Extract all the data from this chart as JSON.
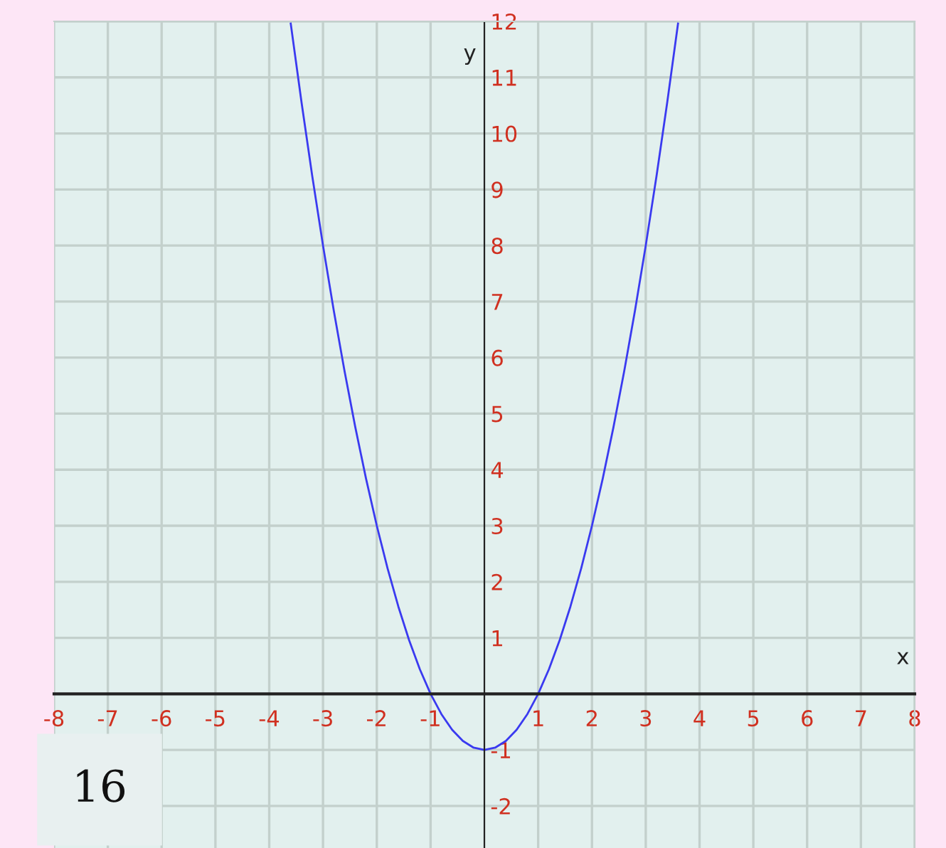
{
  "chart_data": {
    "type": "line",
    "xlabel": "x",
    "ylabel": "y",
    "series": [
      {
        "color": "#3a3af0",
        "x": [
          -3.6,
          -3.4,
          -3.2,
          -3.0,
          -2.8,
          -2.6,
          -2.4,
          -2.2,
          -2.0,
          -1.8,
          -1.6,
          -1.4,
          -1.2,
          -1.0,
          -0.8,
          -0.6,
          -0.4,
          -0.2,
          0,
          0.2,
          0.4,
          0.6,
          0.8,
          1.0,
          1.2,
          1.4,
          1.6,
          1.8,
          2.0,
          2.2,
          2.4,
          2.6,
          2.8,
          3.0,
          3.2,
          3.4,
          3.6
        ],
        "values": [
          11.96,
          10.56,
          9.24,
          8,
          6.84,
          5.76,
          4.76,
          3.84,
          3,
          2.24,
          1.56,
          0.96,
          0.44,
          0,
          -0.36,
          -0.64,
          -0.84,
          -0.96,
          -1,
          -0.96,
          -0.84,
          -0.64,
          -0.36,
          0,
          0.44,
          0.96,
          1.56,
          2.24,
          3,
          3.84,
          4.76,
          5.76,
          6.84,
          8,
          9.24,
          10.56,
          11.96
        ]
      }
    ],
    "xlim": [
      -8,
      8
    ],
    "ylim": [
      -2.75,
      12
    ],
    "xticks": [
      -8,
      -7,
      -6,
      -5,
      -4,
      -3,
      -2,
      -1,
      1,
      2,
      3,
      4,
      5,
      6,
      7,
      8
    ],
    "yticks": [
      -2,
      -1,
      1,
      2,
      3,
      4,
      5,
      6,
      7,
      8,
      9,
      10,
      11,
      12
    ],
    "grid": true,
    "marker": "none",
    "line_style": "solid",
    "annotations": [
      "16"
    ]
  }
}
